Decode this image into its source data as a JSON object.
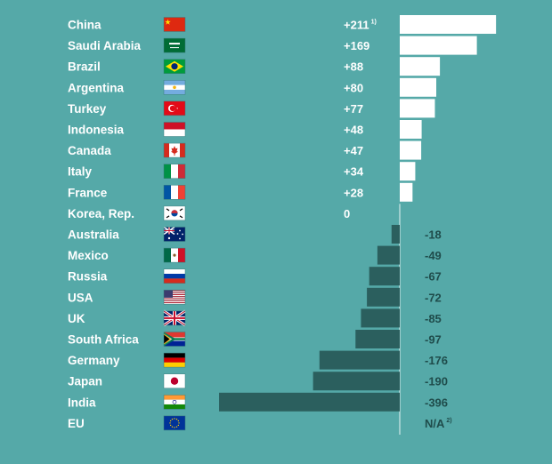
{
  "chart_data": {
    "type": "bar",
    "orientation": "horizontal",
    "categories": [
      "China",
      "Saudi Arabia",
      "Brazil",
      "Argentina",
      "Turkey",
      "Indonesia",
      "Canada",
      "Italy",
      "France",
      "Korea, Rep.",
      "Australia",
      "Mexico",
      "Russia",
      "USA",
      "UK",
      "South Africa",
      "Germany",
      "Japan",
      "India",
      "EU"
    ],
    "values": [
      211,
      169,
      88,
      80,
      77,
      48,
      47,
      34,
      28,
      0,
      -18,
      -49,
      -67,
      -72,
      -85,
      -97,
      -176,
      -190,
      -396,
      null
    ],
    "value_labels": [
      "+211",
      "+169",
      "+88",
      "+80",
      "+77",
      "+48",
      "+47",
      "+34",
      "+28",
      "0",
      "-18",
      "-49",
      "-67",
      "-72",
      "-85",
      "-97",
      "-176",
      "-190",
      "-396",
      "N/A"
    ],
    "footnotes": [
      "1)",
      "",
      "",
      "",
      "",
      "",
      "",
      "",
      "",
      "",
      "",
      "",
      "",
      "",
      "",
      "",
      "",
      "",
      "",
      "2)"
    ],
    "flags": [
      "china-flag-icon",
      "saudi-arabia-flag-icon",
      "brazil-flag-icon",
      "argentina-flag-icon",
      "turkey-flag-icon",
      "indonesia-flag-icon",
      "canada-flag-icon",
      "italy-flag-icon",
      "france-flag-icon",
      "korea-flag-icon",
      "australia-flag-icon",
      "mexico-flag-icon",
      "russia-flag-icon",
      "usa-flag-icon",
      "uk-flag-icon",
      "south-africa-flag-icon",
      "germany-flag-icon",
      "japan-flag-icon",
      "india-flag-icon",
      "eu-flag-icon"
    ],
    "colors": {
      "background": "#55a9a8",
      "positive": "#ffffff",
      "negative": "#2b5f5e",
      "negative_text": "#1f4c4b"
    }
  }
}
